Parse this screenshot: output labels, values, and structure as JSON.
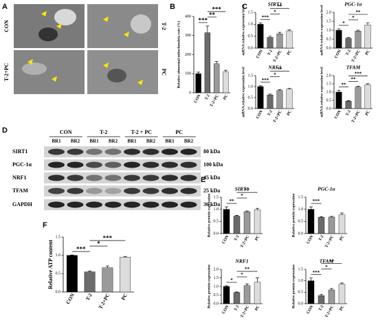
{
  "figure": {
    "panel_labels": [
      "A",
      "B",
      "C",
      "D",
      "E",
      "F"
    ],
    "micrographs": [
      "CON",
      "T-2",
      "T-2+PC",
      "PC"
    ],
    "blot": {
      "groups": [
        "CON",
        "T-2",
        "T-2 + PC",
        "PC"
      ],
      "replicates": [
        "BR1",
        "BR2",
        "BR1",
        "BR2",
        "BR1",
        "BR2",
        "BR1",
        "BR2"
      ],
      "proteins": [
        "SIRT1",
        "PGC-1α",
        "NRF1",
        "TFAM",
        "GAPDH"
      ],
      "sizes": [
        "80 kDa",
        "100 kDa",
        "45 kDa",
        "25 kDa",
        "36 kDa"
      ]
    }
  },
  "chart_data": [
    {
      "type": "bar",
      "ylabel": "Relative abnormal mitochondria rate (%)",
      "categories": [
        "CON",
        "T-2",
        "T-2+PC",
        "PC"
      ],
      "values": [
        100,
        315,
        152,
        110
      ],
      "errors": [
        8,
        35,
        12,
        8
      ],
      "colors": [
        "#000000",
        "#6b6b6b",
        "#9a9a9a",
        "#dcdcdc"
      ],
      "ylim": [
        0,
        400
      ],
      "yticks": [
        0,
        100,
        200,
        300,
        400
      ],
      "significance": [
        {
          "label": "***",
          "between": [
            "CON",
            "T-2"
          ]
        },
        {
          "label": "**",
          "between": [
            "T-2",
            "T-2+PC"
          ]
        },
        {
          "label": "***",
          "between": [
            "T-2",
            "PC"
          ]
        }
      ]
    },
    {
      "type": "bar",
      "title": "SIRT1",
      "ylabel": "mRNA relative expression level",
      "categories": [
        "CON",
        "T-2",
        "T-2+PC",
        "PC"
      ],
      "values": [
        1.0,
        0.45,
        0.6,
        0.72
      ],
      "errors": [
        0.06,
        0.05,
        0.06,
        0.04
      ],
      "colors": [
        "#000000",
        "#6b6b6b",
        "#9a9a9a",
        "#dcdcdc"
      ],
      "ylim": [
        0,
        1.5
      ],
      "yticks": [
        {
          "value": 0,
          "label": "0.0"
        },
        0.5,
        {
          "value": 1,
          "label": "1.0"
        },
        1.5
      ],
      "significance": [
        {
          "label": "***",
          "between": [
            "CON",
            "T-2"
          ]
        },
        {
          "label": "*",
          "between": [
            "T-2",
            "T-2+PC"
          ]
        },
        {
          "label": "**",
          "between": [
            "T-2",
            "PC"
          ]
        }
      ]
    },
    {
      "type": "bar",
      "title": "PGC-1α",
      "ylabel": "mRNA relative expression level",
      "categories": [
        "CON",
        "T-2",
        "T-2+PC",
        "PC"
      ],
      "values": [
        1.0,
        0.55,
        0.95,
        1.3
      ],
      "errors": [
        0.08,
        0.04,
        0.05,
        0.12
      ],
      "colors": [
        "#000000",
        "#6b6b6b",
        "#9a9a9a",
        "#dcdcdc"
      ],
      "ylim": [
        0,
        2
      ],
      "yticks": [
        {
          "value": 0,
          "label": "0.0"
        },
        0.5,
        {
          "value": 1,
          "label": "1.0"
        },
        1.5,
        {
          "value": 2,
          "label": "2.0"
        }
      ],
      "significance": [
        {
          "label": "*",
          "between": [
            "CON",
            "T-2"
          ]
        },
        {
          "label": "*",
          "between": [
            "T-2",
            "T-2+PC"
          ]
        },
        {
          "label": "**",
          "between": [
            "T-2",
            "PC"
          ]
        }
      ]
    },
    {
      "type": "bar",
      "title": "NRF1",
      "ylabel": "mRNA relative expression level",
      "categories": [
        "CON",
        "T-2",
        "T-2+PC",
        "PC"
      ],
      "values": [
        1.0,
        0.62,
        0.82,
        0.88
      ],
      "errors": [
        0.04,
        0.04,
        0.04,
        0.04
      ],
      "colors": [
        "#000000",
        "#6b6b6b",
        "#9a9a9a",
        "#dcdcdc"
      ],
      "ylim": [
        0,
        1.5
      ],
      "yticks": [
        {
          "value": 0,
          "label": "0.0"
        },
        0.5,
        {
          "value": 1,
          "label": "1.0"
        },
        1.5
      ],
      "significance": [
        {
          "label": "***",
          "between": [
            "CON",
            "T-2"
          ]
        },
        {
          "label": "*",
          "between": [
            "T-2",
            "T-2+PC"
          ]
        },
        {
          "label": "**",
          "between": [
            "T-2",
            "PC"
          ]
        }
      ]
    },
    {
      "type": "bar",
      "title": "TFAM",
      "ylabel": "mRNA relative expression level",
      "categories": [
        "CON",
        "T-2",
        "T-2+PC",
        "PC"
      ],
      "values": [
        1.0,
        0.45,
        1.3,
        1.45
      ],
      "errors": [
        0.1,
        0.03,
        0.05,
        0.06
      ],
      "colors": [
        "#000000",
        "#6b6b6b",
        "#9a9a9a",
        "#dcdcdc"
      ],
      "ylim": [
        0,
        2
      ],
      "yticks": [
        {
          "value": 0,
          "label": "0.0"
        },
        0.5,
        {
          "value": 1,
          "label": "1.0"
        },
        1.5,
        {
          "value": 2,
          "label": "2.0"
        }
      ],
      "significance": [
        {
          "label": "**",
          "between": [
            "CON",
            "T-2"
          ]
        },
        {
          "label": "**",
          "between": [
            "T-2",
            "T-2+PC"
          ]
        },
        {
          "label": "***",
          "between": [
            "T-2",
            "PC"
          ]
        }
      ]
    },
    {
      "type": "bar",
      "title": "SIRT1",
      "ylabel": "Relative protein expression",
      "categories": [
        "CON",
        "T-2",
        "T-2+PC",
        "PC"
      ],
      "values": [
        1.0,
        0.72,
        0.9,
        0.98
      ],
      "errors": [
        0.1,
        0.03,
        0.03,
        0.06
      ],
      "colors": [
        "#000000",
        "#6b6b6b",
        "#9a9a9a",
        "#dcdcdc"
      ],
      "ylim": [
        0,
        1.5
      ],
      "yticks": [
        {
          "value": 0,
          "label": "0.0"
        },
        0.5,
        {
          "value": 1,
          "label": "1.0"
        },
        1.5
      ],
      "significance": [
        {
          "label": "**",
          "between": [
            "CON",
            "T-2"
          ]
        },
        {
          "label": "*",
          "between": [
            "T-2",
            "T-2+PC"
          ]
        },
        {
          "label": "**",
          "between": [
            "T-2",
            "PC"
          ]
        }
      ]
    },
    {
      "type": "bar",
      "title": "PGC-1α",
      "ylabel": "Relative protein expression",
      "categories": [
        "CON",
        "T-2",
        "T-2+PC",
        "PC"
      ],
      "values": [
        1.0,
        0.67,
        0.68,
        0.77
      ],
      "errors": [
        0.1,
        0.03,
        0.03,
        0.08
      ],
      "colors": [
        "#000000",
        "#6b6b6b",
        "#9a9a9a",
        "#dcdcdc"
      ],
      "ylim": [
        0,
        1.5
      ],
      "yticks": [
        {
          "value": 0,
          "label": "0.0"
        },
        0.5,
        {
          "value": 1,
          "label": "1.0"
        },
        1.5
      ],
      "significance": [
        {
          "label": "***",
          "between": [
            "CON",
            "T-2"
          ]
        }
      ]
    },
    {
      "type": "bar",
      "title": "NRF1",
      "ylabel": "Relative protein expression",
      "categories": [
        "CON",
        "T-2",
        "T-2+PC",
        "PC"
      ],
      "values": [
        1.0,
        0.65,
        1.05,
        1.25
      ],
      "errors": [
        0.04,
        0.03,
        0.1,
        0.25
      ],
      "colors": [
        "#000000",
        "#6b6b6b",
        "#9a9a9a",
        "#dcdcdc"
      ],
      "ylim": [
        0,
        2
      ],
      "yticks": [
        {
          "value": 0,
          "label": "0.0"
        },
        0.5,
        {
          "value": 1,
          "label": "1.0"
        },
        1.5,
        {
          "value": 2,
          "label": "2.0"
        }
      ],
      "significance": [
        {
          "label": "*",
          "between": [
            "CON",
            "T-2"
          ]
        },
        {
          "label": "*",
          "between": [
            "T-2",
            "T-2+PC"
          ]
        },
        {
          "label": "**",
          "between": [
            "T-2",
            "PC"
          ]
        }
      ]
    },
    {
      "type": "bar",
      "title": "TFAM",
      "ylabel": "Relative protein expression",
      "categories": [
        "CON",
        "T-2",
        "T-2+PC",
        "PC"
      ],
      "values": [
        1.0,
        0.35,
        0.6,
        0.85
      ],
      "errors": [
        0.12,
        0.06,
        0.06,
        0.05
      ],
      "colors": [
        "#000000",
        "#6b6b6b",
        "#9a9a9a",
        "#dcdcdc"
      ],
      "ylim": [
        0,
        1.5
      ],
      "yticks": [
        {
          "value": 0,
          "label": "0.0"
        },
        0.5,
        {
          "value": 1,
          "label": "1.0"
        },
        1.5
      ],
      "significance": [
        {
          "label": "***",
          "between": [
            "CON",
            "T-2"
          ]
        },
        {
          "label": "*",
          "between": [
            "T-2",
            "T-2+PC"
          ]
        },
        {
          "label": "**",
          "between": [
            "T-2",
            "PC"
          ]
        }
      ]
    },
    {
      "type": "bar",
      "ylabel": "Relative ATP content",
      "categories": [
        "CON",
        "T-2",
        "T-2+PC",
        "PC"
      ],
      "values": [
        1.0,
        0.55,
        0.66,
        0.95
      ],
      "errors": [
        0.01,
        0.02,
        0.05,
        0.02
      ],
      "colors": [
        "#000000",
        "#6b6b6b",
        "#9a9a9a",
        "#dcdcdc"
      ],
      "ylim": [
        0,
        1.5
      ],
      "yticks": [
        {
          "value": 0,
          "label": "0.0"
        },
        0.5,
        {
          "value": 1,
          "label": "1.0"
        },
        1.5
      ],
      "significance": [
        {
          "label": "***",
          "between": [
            "CON",
            "T-2"
          ]
        },
        {
          "label": "*",
          "between": [
            "T-2",
            "T-2+PC"
          ]
        },
        {
          "label": "***",
          "between": [
            "T-2",
            "PC"
          ]
        }
      ]
    }
  ]
}
